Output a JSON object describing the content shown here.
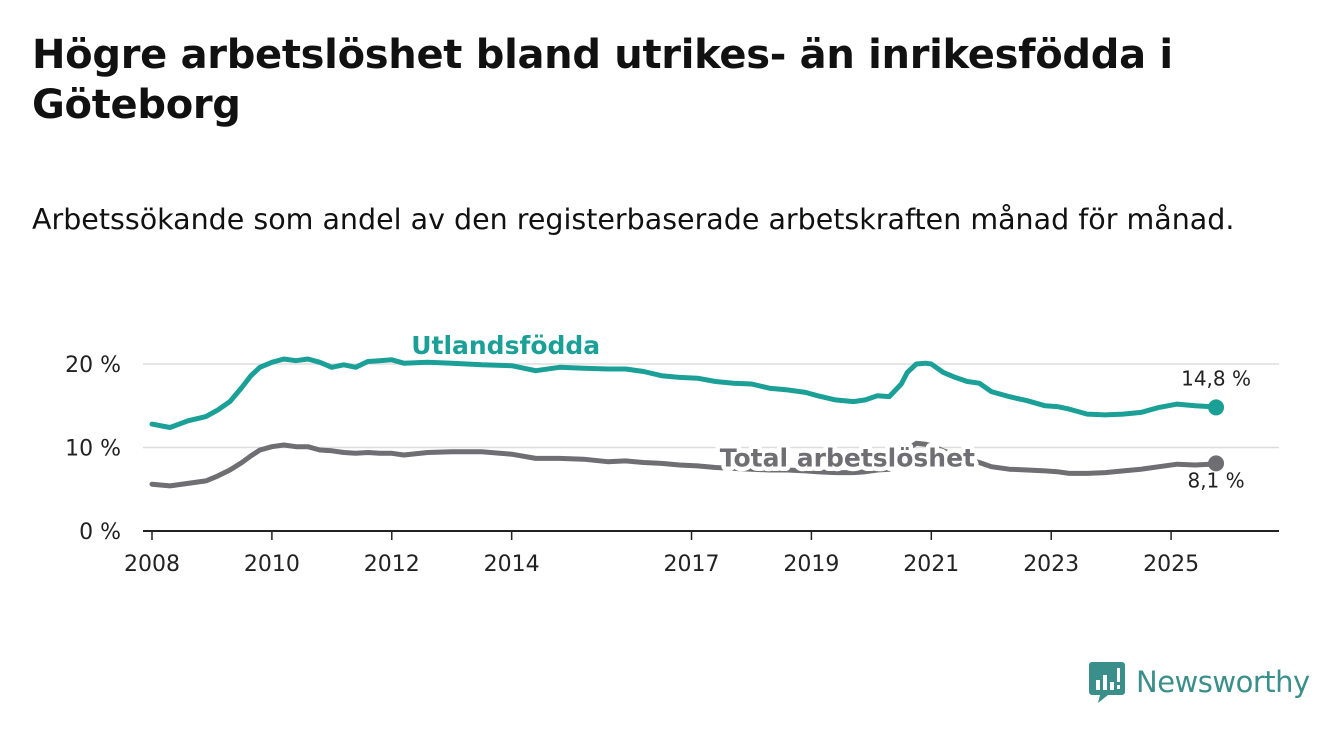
{
  "title": "Högre arbetslöshet bland utrikes- än inrikesfödda i Göteborg",
  "subtitle": "Arbetssökande som andel av den registerbaserade arbetskraften månad för månad.",
  "brand": {
    "name": "Newsworthy",
    "color": "#3a8f8b",
    "icon": "newsworthy-logo-icon"
  },
  "chart_data": {
    "type": "line",
    "title": "Högre arbetslöshet bland utrikes- än inrikesfödda i Göteborg",
    "xlabel": "",
    "ylabel": "",
    "xlim": [
      2007.85,
      2026.8
    ],
    "ylim": [
      0,
      20
    ],
    "x_ticks": [
      2008,
      2010,
      2012,
      2014,
      2017,
      2019,
      2021,
      2023,
      2025
    ],
    "y_ticks": [
      {
        "value": 0,
        "label": "0 %"
      },
      {
        "value": 10,
        "label": "10 %"
      },
      {
        "value": 20,
        "label": "20 %"
      }
    ],
    "grid": true,
    "series": [
      {
        "name": "Utlandsfödda",
        "color": "#1ba098",
        "end_label": "14,8 %",
        "points": [
          [
            2008.0,
            12.8
          ],
          [
            2008.3,
            12.4
          ],
          [
            2008.6,
            13.2
          ],
          [
            2008.9,
            13.7
          ],
          [
            2009.1,
            14.5
          ],
          [
            2009.3,
            15.5
          ],
          [
            2009.5,
            17.2
          ],
          [
            2009.65,
            18.6
          ],
          [
            2009.8,
            19.6
          ],
          [
            2010.0,
            20.2
          ],
          [
            2010.2,
            20.6
          ],
          [
            2010.4,
            20.4
          ],
          [
            2010.6,
            20.6
          ],
          [
            2010.8,
            20.2
          ],
          [
            2011.0,
            19.6
          ],
          [
            2011.2,
            19.9
          ],
          [
            2011.4,
            19.6
          ],
          [
            2011.6,
            20.3
          ],
          [
            2011.8,
            20.4
          ],
          [
            2012.0,
            20.5
          ],
          [
            2012.2,
            20.1
          ],
          [
            2012.6,
            20.2
          ],
          [
            2013.0,
            20.1
          ],
          [
            2013.5,
            19.9
          ],
          [
            2014.0,
            19.8
          ],
          [
            2014.4,
            19.2
          ],
          [
            2014.8,
            19.6
          ],
          [
            2015.2,
            19.5
          ],
          [
            2015.6,
            19.4
          ],
          [
            2015.9,
            19.4
          ],
          [
            2016.2,
            19.1
          ],
          [
            2016.5,
            18.6
          ],
          [
            2016.8,
            18.4
          ],
          [
            2017.1,
            18.3
          ],
          [
            2017.4,
            17.9
          ],
          [
            2017.7,
            17.7
          ],
          [
            2018.0,
            17.6
          ],
          [
            2018.3,
            17.1
          ],
          [
            2018.6,
            16.9
          ],
          [
            2018.9,
            16.6
          ],
          [
            2019.1,
            16.2
          ],
          [
            2019.4,
            15.7
          ],
          [
            2019.7,
            15.5
          ],
          [
            2019.9,
            15.7
          ],
          [
            2020.1,
            16.2
          ],
          [
            2020.3,
            16.1
          ],
          [
            2020.5,
            17.6
          ],
          [
            2020.6,
            19.0
          ],
          [
            2020.75,
            20.0
          ],
          [
            2020.9,
            20.1
          ],
          [
            2021.0,
            20.0
          ],
          [
            2021.2,
            19.0
          ],
          [
            2021.4,
            18.4
          ],
          [
            2021.6,
            17.9
          ],
          [
            2021.8,
            17.7
          ],
          [
            2022.0,
            16.7
          ],
          [
            2022.3,
            16.1
          ],
          [
            2022.6,
            15.6
          ],
          [
            2022.9,
            15.0
          ],
          [
            2023.1,
            14.9
          ],
          [
            2023.3,
            14.6
          ],
          [
            2023.6,
            14.0
          ],
          [
            2023.9,
            13.9
          ],
          [
            2024.2,
            14.0
          ],
          [
            2024.5,
            14.2
          ],
          [
            2024.8,
            14.8
          ],
          [
            2025.1,
            15.2
          ],
          [
            2025.4,
            15.0
          ],
          [
            2025.65,
            14.9
          ],
          [
            2025.75,
            14.8
          ]
        ]
      },
      {
        "name": "Total arbetslöshet",
        "color": "#6e6e73",
        "end_label": "8,1 %",
        "points": [
          [
            2008.0,
            5.6
          ],
          [
            2008.3,
            5.4
          ],
          [
            2008.6,
            5.7
          ],
          [
            2008.9,
            6.0
          ],
          [
            2009.1,
            6.6
          ],
          [
            2009.3,
            7.3
          ],
          [
            2009.5,
            8.2
          ],
          [
            2009.65,
            9.0
          ],
          [
            2009.8,
            9.7
          ],
          [
            2010.0,
            10.1
          ],
          [
            2010.2,
            10.3
          ],
          [
            2010.4,
            10.1
          ],
          [
            2010.6,
            10.1
          ],
          [
            2010.8,
            9.7
          ],
          [
            2011.0,
            9.6
          ],
          [
            2011.2,
            9.4
          ],
          [
            2011.4,
            9.3
          ],
          [
            2011.6,
            9.4
          ],
          [
            2011.8,
            9.3
          ],
          [
            2012.0,
            9.3
          ],
          [
            2012.2,
            9.1
          ],
          [
            2012.6,
            9.4
          ],
          [
            2013.0,
            9.5
          ],
          [
            2013.5,
            9.5
          ],
          [
            2014.0,
            9.2
          ],
          [
            2014.4,
            8.7
          ],
          [
            2014.8,
            8.7
          ],
          [
            2015.2,
            8.6
          ],
          [
            2015.6,
            8.3
          ],
          [
            2015.9,
            8.4
          ],
          [
            2016.2,
            8.2
          ],
          [
            2016.5,
            8.1
          ],
          [
            2016.8,
            7.9
          ],
          [
            2017.1,
            7.8
          ],
          [
            2017.4,
            7.6
          ],
          [
            2017.7,
            7.5
          ],
          [
            2018.0,
            7.4
          ],
          [
            2018.3,
            7.3
          ],
          [
            2018.6,
            7.3
          ],
          [
            2018.9,
            7.2
          ],
          [
            2019.1,
            7.1
          ],
          [
            2019.4,
            7.0
          ],
          [
            2019.7,
            7.0
          ],
          [
            2019.9,
            7.1
          ],
          [
            2020.1,
            7.3
          ],
          [
            2020.3,
            7.4
          ],
          [
            2020.5,
            8.6
          ],
          [
            2020.6,
            9.8
          ],
          [
            2020.75,
            10.5
          ],
          [
            2020.9,
            10.4
          ],
          [
            2021.0,
            10.2
          ],
          [
            2021.2,
            9.6
          ],
          [
            2021.4,
            9.1
          ],
          [
            2021.6,
            8.6
          ],
          [
            2021.8,
            8.2
          ],
          [
            2022.0,
            7.7
          ],
          [
            2022.3,
            7.4
          ],
          [
            2022.6,
            7.3
          ],
          [
            2022.9,
            7.2
          ],
          [
            2023.1,
            7.1
          ],
          [
            2023.3,
            6.9
          ],
          [
            2023.6,
            6.9
          ],
          [
            2023.9,
            7.0
          ],
          [
            2024.2,
            7.2
          ],
          [
            2024.5,
            7.4
          ],
          [
            2024.8,
            7.7
          ],
          [
            2025.1,
            8.0
          ],
          [
            2025.4,
            7.9
          ],
          [
            2025.65,
            8.0
          ],
          [
            2025.75,
            8.1
          ]
        ]
      }
    ],
    "annotations": [
      {
        "text": "Utlandsfödda",
        "series": "Utlandsfödda",
        "x": 2013.9,
        "y": 21.2,
        "color": "#1ba098"
      },
      {
        "text": "Total arbetslöshet",
        "series": "Total arbetslöshet",
        "x": 2019.6,
        "y": 7.7,
        "color": "#6e6e73"
      }
    ]
  }
}
